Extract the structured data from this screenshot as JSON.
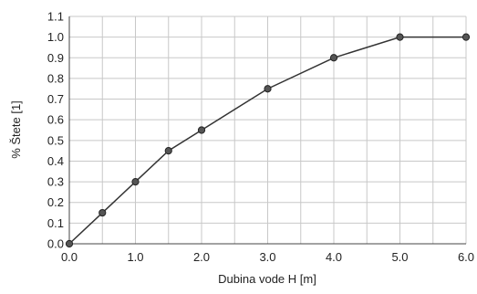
{
  "chart_data": {
    "type": "line",
    "title": "",
    "xlabel": "Dubina vode H [m]",
    "ylabel": "% Štete [1]",
    "xlim": [
      0,
      6
    ],
    "ylim": [
      0,
      1.1
    ],
    "x_ticks": [
      0,
      0.5,
      1,
      1.5,
      2,
      2.5,
      3,
      3.5,
      4,
      4.5,
      5,
      5.5,
      6
    ],
    "x_tick_labels": [
      "0.0",
      "",
      "1.0",
      "",
      "2.0",
      "",
      "3.0",
      "",
      "4.0",
      "",
      "5.0",
      "",
      "6.0"
    ],
    "y_ticks": [
      0,
      0.1,
      0.2,
      0.3,
      0.4,
      0.5,
      0.6,
      0.7,
      0.8,
      0.9,
      1.0,
      1.1
    ],
    "y_tick_labels": [
      "0.0",
      "0.1",
      "0.2",
      "0.3",
      "0.4",
      "0.5",
      "0.6",
      "0.7",
      "0.8",
      "0.9",
      "1.0",
      "1.1"
    ],
    "grid": true,
    "series": [
      {
        "x": [
          0,
          0.5,
          1,
          1.5,
          2,
          3,
          4,
          5,
          6
        ],
        "y": [
          0,
          0.15,
          0.3,
          0.45,
          0.55,
          0.75,
          0.9,
          1.0,
          1.0
        ]
      }
    ],
    "colors": {
      "line": "#333333",
      "marker": "#555555",
      "grid": "#c8c8c8",
      "axis": "#444444"
    }
  }
}
